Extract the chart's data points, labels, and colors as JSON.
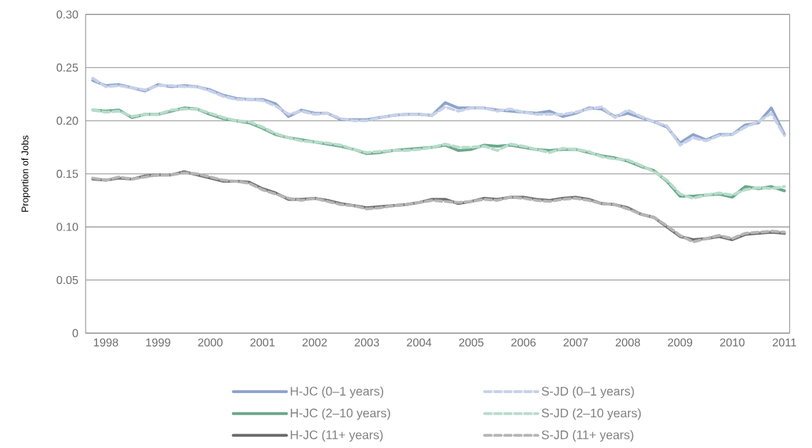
{
  "chart_data": {
    "type": "line",
    "ylabel": "Proportion of Jobs",
    "categories": [
      null,
      "1998",
      null,
      null,
      null,
      "1999",
      null,
      null,
      null,
      "2000",
      null,
      null,
      null,
      "2001",
      null,
      null,
      null,
      "2002",
      null,
      null,
      null,
      "2003",
      null,
      null,
      null,
      "2004",
      null,
      null,
      null,
      "2005",
      null,
      null,
      null,
      "2006",
      null,
      null,
      null,
      "2007",
      null,
      null,
      null,
      "2008",
      null,
      null,
      null,
      "2009",
      null,
      null,
      null,
      "2010",
      null,
      null,
      null,
      "2011"
    ],
    "ylim": [
      0,
      0.3
    ],
    "yticks": [
      {
        "value": 0,
        "label": "0"
      },
      {
        "value": 0.05,
        "label": "0.05"
      },
      {
        "value": 0.1,
        "label": "0.10"
      },
      {
        "value": 0.15,
        "label": "0.15"
      },
      {
        "value": 0.2,
        "label": "0.20"
      },
      {
        "value": 0.25,
        "label": "0.25"
      },
      {
        "value": 0.3,
        "label": "0.30"
      }
    ],
    "grid": "y",
    "legend": "bottom",
    "marker": "none",
    "series": [
      {
        "name": "H-JC (0–1 years)",
        "color": "#8ea4cc",
        "line_style": "solid",
        "values": [
          0.238,
          0.233,
          0.234,
          0.231,
          0.228,
          0.234,
          0.232,
          0.233,
          0.232,
          0.229,
          0.224,
          0.221,
          0.22,
          0.22,
          0.216,
          0.204,
          0.21,
          0.207,
          0.207,
          0.201,
          0.201,
          0.201,
          0.203,
          0.205,
          0.206,
          0.206,
          0.205,
          0.217,
          0.212,
          0.212,
          0.212,
          0.21,
          0.209,
          0.208,
          0.207,
          0.209,
          0.204,
          0.207,
          0.212,
          0.211,
          0.204,
          0.207,
          0.203,
          0.199,
          0.194,
          0.179,
          0.187,
          0.182,
          0.187,
          0.187,
          0.196,
          0.198,
          0.212,
          0.187
        ]
      },
      {
        "name": "S-JD (0–1 years)",
        "color": "#c8d2e8",
        "line_style": "dashed",
        "values": [
          0.24,
          0.232,
          0.233,
          0.231,
          0.229,
          0.233,
          0.233,
          0.232,
          0.232,
          0.228,
          0.223,
          0.22,
          0.22,
          0.219,
          0.214,
          0.206,
          0.209,
          0.206,
          0.207,
          0.202,
          0.2,
          0.2,
          0.203,
          0.205,
          0.206,
          0.206,
          0.205,
          0.213,
          0.209,
          0.212,
          0.212,
          0.209,
          0.211,
          0.208,
          0.206,
          0.206,
          0.206,
          0.208,
          0.211,
          0.213,
          0.203,
          0.21,
          0.204,
          0.199,
          0.195,
          0.177,
          0.184,
          0.181,
          0.186,
          0.187,
          0.194,
          0.199,
          0.207,
          0.186
        ]
      },
      {
        "name": "H-JC (2–10 years)",
        "color": "#6aa88a",
        "line_style": "solid",
        "values": [
          0.21,
          0.209,
          0.21,
          0.203,
          0.206,
          0.206,
          0.209,
          0.212,
          0.211,
          0.206,
          0.202,
          0.2,
          0.198,
          0.193,
          0.187,
          0.184,
          0.182,
          0.18,
          0.178,
          0.176,
          0.173,
          0.169,
          0.17,
          0.172,
          0.173,
          0.174,
          0.175,
          0.177,
          0.172,
          0.173,
          0.177,
          0.176,
          0.177,
          0.175,
          0.173,
          0.172,
          0.173,
          0.173,
          0.17,
          0.167,
          0.165,
          0.162,
          0.157,
          0.153,
          0.143,
          0.129,
          0.129,
          0.13,
          0.131,
          0.128,
          0.138,
          0.136,
          0.138,
          0.134
        ]
      },
      {
        "name": "S-JD (2–10 years)",
        "color": "#b8dccb",
        "line_style": "dashed",
        "values": [
          0.21,
          0.208,
          0.209,
          0.204,
          0.206,
          0.206,
          0.21,
          0.211,
          0.211,
          0.207,
          0.203,
          0.2,
          0.199,
          0.194,
          0.188,
          0.184,
          0.181,
          0.18,
          0.179,
          0.177,
          0.173,
          0.17,
          0.171,
          0.172,
          0.172,
          0.173,
          0.175,
          0.178,
          0.175,
          0.175,
          0.176,
          0.172,
          0.178,
          0.176,
          0.173,
          0.17,
          0.174,
          0.173,
          0.171,
          0.166,
          0.164,
          0.163,
          0.158,
          0.152,
          0.144,
          0.131,
          0.127,
          0.13,
          0.132,
          0.13,
          0.135,
          0.137,
          0.136,
          0.138
        ]
      },
      {
        "name": "H-JC (11+ years)",
        "color": "#6b6b6b",
        "line_style": "solid",
        "values": [
          0.145,
          0.144,
          0.146,
          0.145,
          0.148,
          0.149,
          0.149,
          0.152,
          0.149,
          0.146,
          0.143,
          0.143,
          0.142,
          0.136,
          0.132,
          0.126,
          0.126,
          0.127,
          0.125,
          0.122,
          0.12,
          0.118,
          0.119,
          0.12,
          0.121,
          0.123,
          0.126,
          0.126,
          0.122,
          0.124,
          0.127,
          0.126,
          0.128,
          0.128,
          0.126,
          0.125,
          0.127,
          0.128,
          0.126,
          0.122,
          0.121,
          0.118,
          0.112,
          0.109,
          0.1,
          0.091,
          0.088,
          0.089,
          0.091,
          0.088,
          0.093,
          0.094,
          0.095,
          0.094
        ]
      },
      {
        "name": "S-JD (11+ years)",
        "color": "#b5b5b5",
        "line_style": "dashed",
        "values": [
          0.146,
          0.144,
          0.147,
          0.145,
          0.147,
          0.149,
          0.149,
          0.151,
          0.15,
          0.147,
          0.144,
          0.143,
          0.141,
          0.135,
          0.131,
          0.127,
          0.125,
          0.127,
          0.124,
          0.121,
          0.12,
          0.117,
          0.118,
          0.12,
          0.121,
          0.123,
          0.125,
          0.124,
          0.123,
          0.124,
          0.126,
          0.125,
          0.128,
          0.127,
          0.125,
          0.124,
          0.126,
          0.127,
          0.125,
          0.122,
          0.121,
          0.117,
          0.112,
          0.109,
          0.101,
          0.092,
          0.086,
          0.089,
          0.092,
          0.089,
          0.094,
          0.095,
          0.096,
          0.095
        ]
      }
    ]
  }
}
